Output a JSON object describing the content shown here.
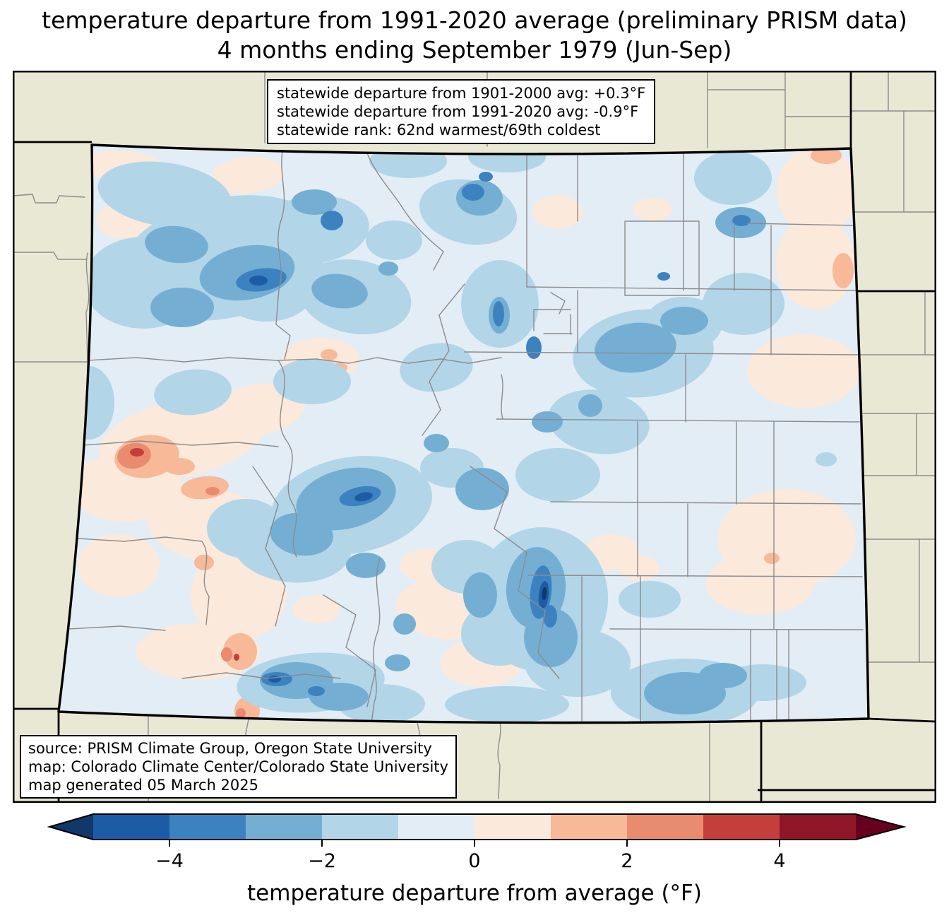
{
  "title": {
    "line1": "temperature departure from 1991-2020 average (preliminary PRISM data)",
    "line2": "4 months ending September 1979 (Jun-Sep)"
  },
  "stats_box": {
    "lines": [
      "statewide departure from 1901-2000 avg: +0.3°F",
      "statewide departure from 1991-2020 avg: -0.9°F",
      "statewide rank: 62nd warmest/69th coldest"
    ]
  },
  "source_box": {
    "lines": [
      "source: PRISM Climate Group, Oregon State University",
      "map: Colorado Climate Center/Colorado State University",
      "map generated 05 March 2025"
    ]
  },
  "colorbar": {
    "label": "temperature departure from average (°F)",
    "range": [
      -5,
      5
    ],
    "bin_edges": [
      -5,
      -4,
      -3,
      -2,
      -1,
      0,
      1,
      2,
      3,
      4,
      5
    ],
    "bin_colors": [
      "#1c5ba5",
      "#3d82c0",
      "#74afd3",
      "#b2d5e8",
      "#e3edf5",
      "#fbe9dc",
      "#f7b997",
      "#e98b6f",
      "#c43e3c",
      "#8f1627"
    ],
    "under_color": "#10386a",
    "over_color": "#67001f",
    "ticks": [
      {
        "value": -4,
        "label": "−4"
      },
      {
        "value": -2,
        "label": "−2"
      },
      {
        "value": 0,
        "label": "0"
      },
      {
        "value": 2,
        "label": "2"
      },
      {
        "value": 4,
        "label": "4"
      }
    ]
  },
  "map": {
    "background_color": "#e9e8d5",
    "county_line_color": "#8c8c8c",
    "state_border_color": "#000000"
  }
}
